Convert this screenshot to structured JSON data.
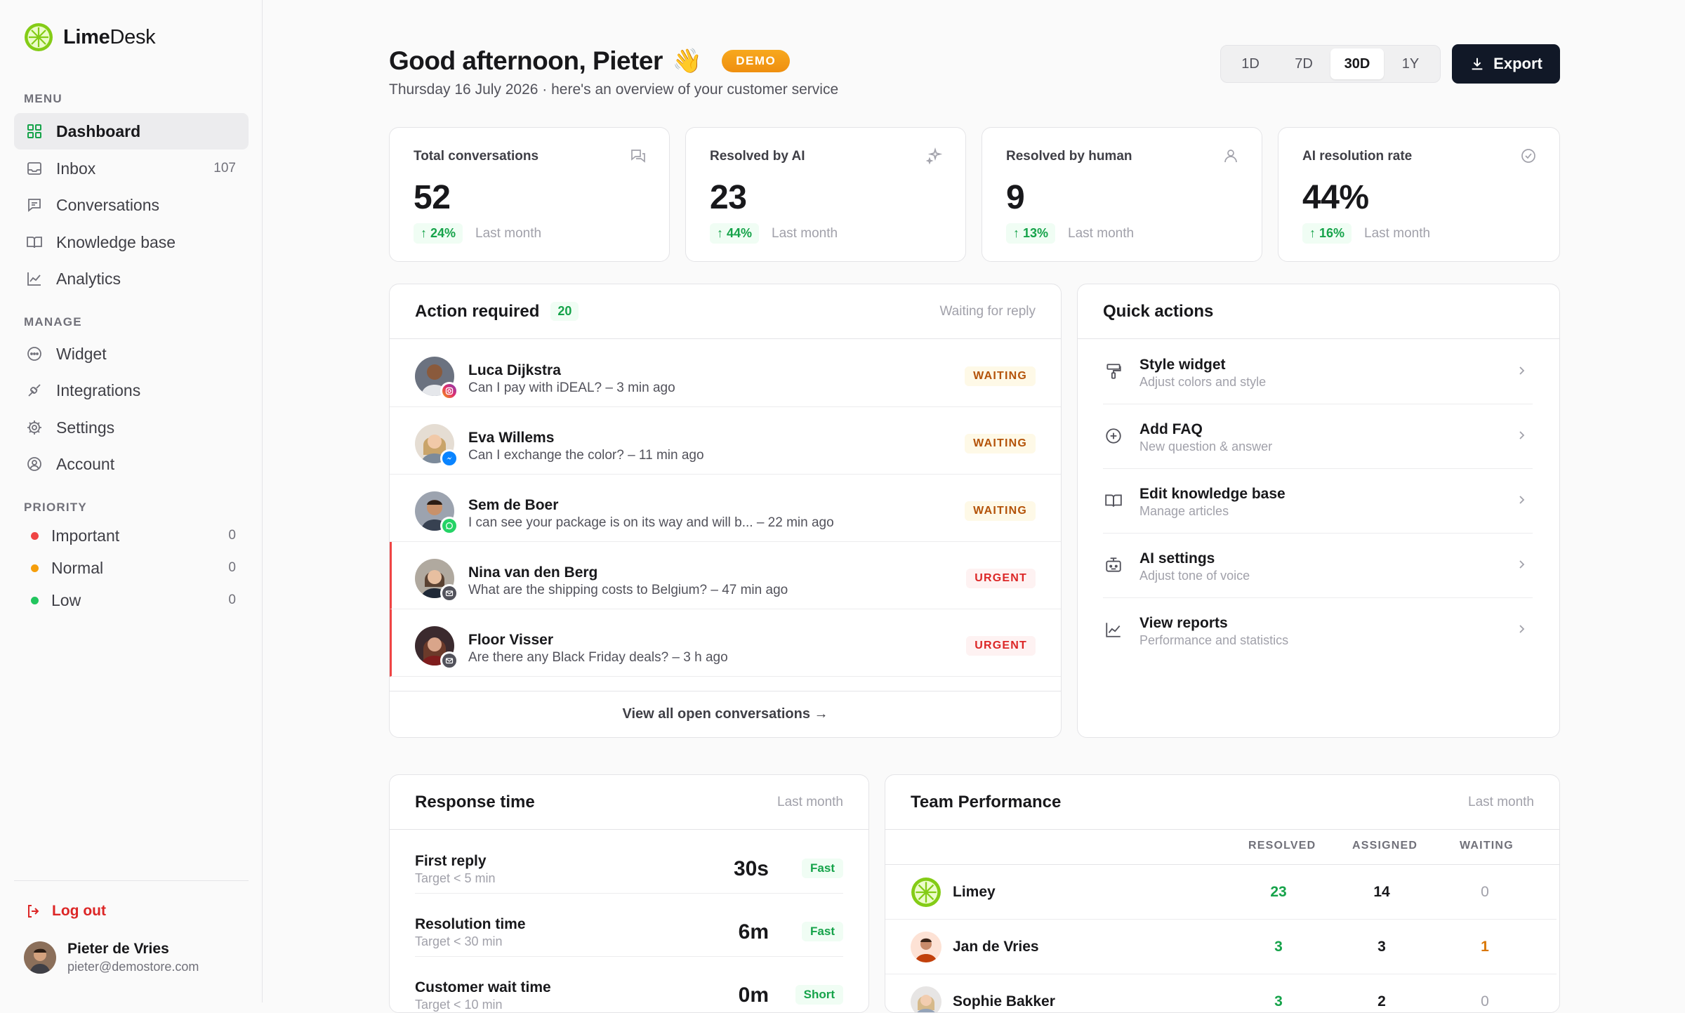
{
  "app": {
    "name_bold": "Lime",
    "name_rest": "Desk"
  },
  "sidebar": {
    "menu_label": "MENU",
    "menu": [
      {
        "label": "Dashboard",
        "icon": "dashboard-icon"
      },
      {
        "label": "Inbox",
        "icon": "inbox-icon",
        "count": "107"
      },
      {
        "label": "Conversations",
        "icon": "chat-icon"
      },
      {
        "label": "Knowledge base",
        "icon": "book-icon"
      },
      {
        "label": "Analytics",
        "icon": "chart-icon"
      }
    ],
    "manage_label": "MANAGE",
    "manage": [
      {
        "label": "Widget",
        "icon": "widget-icon"
      },
      {
        "label": "Integrations",
        "icon": "integrations-icon"
      },
      {
        "label": "Settings",
        "icon": "gear-icon"
      },
      {
        "label": "Account",
        "icon": "account-icon"
      }
    ],
    "priority_label": "PRIORITY",
    "priority": [
      {
        "label": "Important",
        "count": "0",
        "color": "#ef4444"
      },
      {
        "label": "Normal",
        "count": "0",
        "color": "#f59e0b"
      },
      {
        "label": "Low",
        "count": "0",
        "color": "#22c55e"
      }
    ],
    "logout": "Log out",
    "user": {
      "name": "Pieter de Vries",
      "email": "pieter@demostore.com"
    }
  },
  "header": {
    "greeting": "Good afternoon, Pieter",
    "wave": "👋",
    "badge": "DEMO",
    "subtitle": "Thursday 16 July 2026 · here's an overview of your customer service",
    "ranges": [
      "1D",
      "7D",
      "30D",
      "1Y"
    ],
    "selected_range": "30D",
    "export": "Export"
  },
  "stats": [
    {
      "title": "Total conversations",
      "value": "52",
      "delta": "24%",
      "period": "Last month",
      "icon": "chat-bubbles-icon"
    },
    {
      "title": "Resolved by AI",
      "value": "23",
      "delta": "44%",
      "period": "Last month",
      "icon": "sparkle-icon"
    },
    {
      "title": "Resolved by human",
      "value": "9",
      "delta": "13%",
      "period": "Last month",
      "icon": "user-icon"
    },
    {
      "title": "AI resolution rate",
      "value": "44%",
      "delta": "16%",
      "period": "Last month",
      "icon": "check-circle-icon"
    }
  ],
  "action": {
    "title": "Action required",
    "count": "20",
    "right": "Waiting for reply",
    "items": [
      {
        "name": "Luca Dijkstra",
        "message": "Can I pay with iDEAL? – 3 min ago",
        "status": "WAITING",
        "channel": "instagram"
      },
      {
        "name": "Eva Willems",
        "message": "Can I exchange the color? – 11 min ago",
        "status": "WAITING",
        "channel": "messenger"
      },
      {
        "name": "Sem de Boer",
        "message": "I can see your package is on its way and will b... – 22 min ago",
        "status": "WAITING",
        "channel": "whatsapp"
      },
      {
        "name": "Nina van den Berg",
        "message": "What are the shipping costs to Belgium? – 47 min ago",
        "status": "URGENT",
        "channel": "email"
      },
      {
        "name": "Floor Visser",
        "message": "Are there any Black Friday deals? – 3 h ago",
        "status": "URGENT",
        "channel": "email"
      }
    ],
    "view_all": "View all open conversations →"
  },
  "quick": {
    "title": "Quick actions",
    "items": [
      {
        "title": "Style widget",
        "sub": "Adjust colors and style",
        "icon": "paint-roller-icon"
      },
      {
        "title": "Add FAQ",
        "sub": "New question & answer",
        "icon": "plus-circle-icon"
      },
      {
        "title": "Edit knowledge base",
        "sub": "Manage articles",
        "icon": "book-open-icon"
      },
      {
        "title": "AI settings",
        "sub": "Adjust tone of voice",
        "icon": "bot-icon"
      },
      {
        "title": "View reports",
        "sub": "Performance and statistics",
        "icon": "line-chart-icon"
      }
    ]
  },
  "response": {
    "title": "Response time",
    "right": "Last month",
    "items": [
      {
        "label": "First reply",
        "sub": "Target < 5 min",
        "value": "30s",
        "badge": "Fast"
      },
      {
        "label": "Resolution time",
        "sub": "Target < 30 min",
        "value": "6m",
        "badge": "Fast"
      },
      {
        "label": "Customer wait time",
        "sub": "Target < 10 min",
        "value": "0m",
        "badge": "Short"
      }
    ]
  },
  "team": {
    "title": "Team Performance",
    "right": "Last month",
    "cols": [
      "RESOLVED",
      "ASSIGNED",
      "WAITING"
    ],
    "rows": [
      {
        "name": "Limey",
        "resolved": "23",
        "assigned": "14",
        "waiting": "0"
      },
      {
        "name": "Jan de Vries",
        "resolved": "3",
        "assigned": "3",
        "waiting": "1"
      },
      {
        "name": "Sophie Bakker",
        "resolved": "3",
        "assigned": "2",
        "waiting": "0"
      }
    ]
  }
}
